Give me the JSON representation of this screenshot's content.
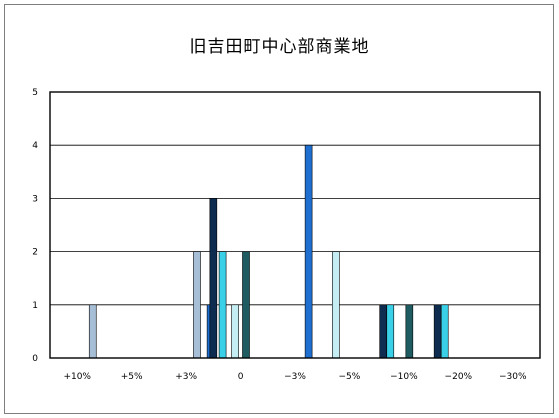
{
  "chart_data": {
    "type": "bar",
    "title": "旧吉田町中心部商業地",
    "categories": [
      "+10%",
      "+5%",
      "+3%",
      "0",
      "−3%",
      "−5%",
      "−10%",
      "−20%",
      "−30%"
    ],
    "series": [
      {
        "color": "#a6bfd6",
        "values": [
          0,
          0,
          0,
          0,
          1,
          2,
          0,
          0,
          0
        ]
      },
      {
        "color": "#1f6fd0",
        "values": [
          0,
          0,
          0,
          0,
          0,
          1,
          4,
          0,
          0
        ]
      },
      {
        "color": "#0d2c4f",
        "values": [
          0,
          0,
          0,
          0,
          0,
          3,
          0,
          1,
          1
        ]
      },
      {
        "color": "#3ad0e8",
        "values": [
          0,
          0,
          0,
          0,
          0,
          2,
          0,
          1,
          1
        ]
      },
      {
        "color": "#c4eef4",
        "values": [
          0,
          0,
          0,
          0,
          0,
          1,
          2,
          0,
          0
        ]
      },
      {
        "color": "#1f5c62",
        "values": [
          0,
          0,
          0,
          0,
          0,
          2,
          0,
          1,
          0
        ]
      }
    ],
    "bar_positions": [
      [
        0,
        0,
        0,
        0,
        0.785,
        2.7,
        0,
        0,
        0
      ],
      [
        0,
        0,
        0,
        0,
        0,
        2.95,
        4.75,
        0,
        0
      ],
      [
        0,
        0,
        0,
        0,
        0,
        3.0,
        0,
        6.12,
        7.12
      ],
      [
        0,
        0,
        0,
        0,
        0,
        3.17,
        0,
        6.25,
        7.25
      ],
      [
        0,
        0,
        0,
        0,
        0,
        3.4,
        5.25,
        0,
        0
      ],
      [
        0,
        0,
        0,
        0,
        0,
        3.6,
        0,
        6.6,
        0
      ]
    ],
    "yticks": [
      "0",
      "1",
      "2",
      "3",
      "4",
      "5"
    ],
    "ylim": [
      0,
      5
    ],
    "grid": true
  }
}
